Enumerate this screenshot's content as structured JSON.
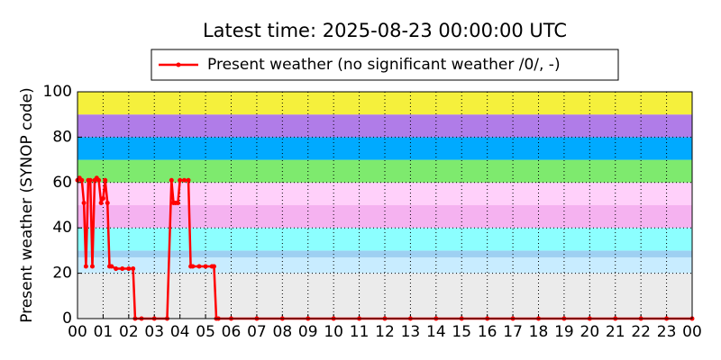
{
  "chart_data": {
    "type": "line",
    "title": "Latest time: 2025-08-23 00:00:00 UTC",
    "y_label": "Present weather (SYNOP code)",
    "xlim": [
      0,
      24
    ],
    "ylim": [
      0,
      100
    ],
    "xticks": [
      {
        "value": 0,
        "label": "00"
      },
      {
        "value": 1,
        "label": "01"
      },
      {
        "value": 2,
        "label": "02"
      },
      {
        "value": 3,
        "label": "03"
      },
      {
        "value": 4,
        "label": "04"
      },
      {
        "value": 5,
        "label": "05"
      },
      {
        "value": 6,
        "label": "06"
      },
      {
        "value": 7,
        "label": "07"
      },
      {
        "value": 8,
        "label": "08"
      },
      {
        "value": 9,
        "label": "09"
      },
      {
        "value": 10,
        "label": "10"
      },
      {
        "value": 11,
        "label": "11"
      },
      {
        "value": 12,
        "label": "12"
      },
      {
        "value": 13,
        "label": "13"
      },
      {
        "value": 14,
        "label": "14"
      },
      {
        "value": 15,
        "label": "15"
      },
      {
        "value": 16,
        "label": "16"
      },
      {
        "value": 17,
        "label": "17"
      },
      {
        "value": 18,
        "label": "18"
      },
      {
        "value": 19,
        "label": "19"
      },
      {
        "value": 20,
        "label": "20"
      },
      {
        "value": 21,
        "label": "21"
      },
      {
        "value": 22,
        "label": "22"
      },
      {
        "value": 23,
        "label": "23"
      },
      {
        "value": 24,
        "label": "00"
      }
    ],
    "yticks": [
      0,
      20,
      40,
      60,
      80,
      100
    ],
    "grid": true,
    "legend": "top-center",
    "bands": [
      {
        "from": 0,
        "to": 20,
        "color": "#ebebeb"
      },
      {
        "from": 20,
        "to": 27,
        "color": "#c8ecff"
      },
      {
        "from": 27,
        "to": 30,
        "color": "#9ed0f2"
      },
      {
        "from": 30,
        "to": 40,
        "color": "#8cffff"
      },
      {
        "from": 40,
        "to": 50,
        "color": "#f5b2f0"
      },
      {
        "from": 50,
        "to": 60,
        "color": "#ffd0fa"
      },
      {
        "from": 60,
        "to": 70,
        "color": "#7eea6e"
      },
      {
        "from": 70,
        "to": 80,
        "color": "#00aaff"
      },
      {
        "from": 80,
        "to": 90,
        "color": "#b07ce8"
      },
      {
        "from": 90,
        "to": 100,
        "color": "#f5f03c"
      }
    ],
    "series": [
      {
        "name": "Present weather (no significant weather /0/, -)",
        "color": "#ff0000",
        "x": [
          0,
          0.08,
          0.17,
          0.25,
          0.33,
          0.42,
          0.5,
          0.58,
          0.67,
          0.75,
          0.83,
          0.92,
          1.0,
          1.08,
          1.17,
          1.25,
          1.33,
          1.5,
          1.75,
          2.0,
          2.17,
          2.25,
          2.5,
          3.0,
          3.5,
          3.67,
          3.75,
          3.83,
          3.92,
          4.0,
          4.17,
          4.33,
          4.42,
          4.5,
          4.75,
          5.0,
          5.25,
          5.33,
          5.42,
          5.5,
          6,
          7,
          8,
          9,
          10,
          11,
          12,
          13,
          14,
          15,
          16,
          17,
          18,
          19,
          20,
          21,
          22,
          23,
          24
        ],
        "values": [
          61,
          62,
          61,
          51,
          23,
          61,
          61,
          23,
          61,
          62,
          61,
          51,
          53,
          61,
          51,
          23,
          23,
          22,
          22,
          22,
          22,
          0,
          0,
          0,
          0,
          61,
          51,
          51,
          51,
          61,
          61,
          61,
          23,
          23,
          23,
          23,
          23,
          23,
          0,
          0,
          0,
          0,
          0,
          0,
          0,
          0,
          0,
          0,
          0,
          0,
          0,
          0,
          0,
          0,
          0,
          0,
          0,
          0,
          0
        ]
      }
    ]
  }
}
